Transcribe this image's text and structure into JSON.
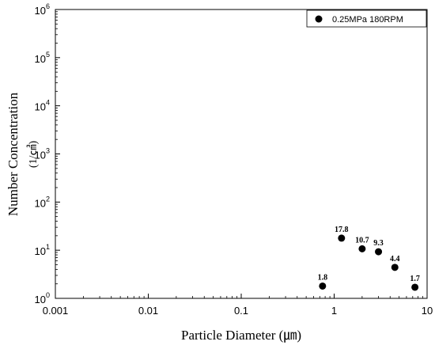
{
  "chart_data": {
    "type": "scatter",
    "xscale": "log",
    "yscale": "log",
    "xlim": [
      0.001,
      10
    ],
    "ylim": [
      1,
      1000000
    ],
    "xlabel": "Particle Diameter (㎛)",
    "ylabel": "Number Concentration",
    "ylabel_unit": "(1/㎤)",
    "x_ticks": [
      {
        "value": 0.001,
        "label": "0.001"
      },
      {
        "value": 0.01,
        "label": "0.01"
      },
      {
        "value": 0.1,
        "label": "0.1"
      },
      {
        "value": 1,
        "label": "1"
      },
      {
        "value": 10,
        "label": "10"
      }
    ],
    "y_ticks": [
      {
        "value": 1,
        "base": "10",
        "exp": "0"
      },
      {
        "value": 10,
        "base": "10",
        "exp": "1"
      },
      {
        "value": 100,
        "base": "10",
        "exp": "2"
      },
      {
        "value": 1000,
        "base": "10",
        "exp": "3"
      },
      {
        "value": 10000,
        "base": "10",
        "exp": "4"
      },
      {
        "value": 100000,
        "base": "10",
        "exp": "5"
      },
      {
        "value": 1000000,
        "base": "10",
        "exp": "6"
      }
    ],
    "legend_position": "top-right",
    "series": [
      {
        "name": "0.25MPa 180RPM",
        "color": "#000000",
        "marker": "circle",
        "points": [
          {
            "x": 0.75,
            "y": 1.8,
            "label": "1.8"
          },
          {
            "x": 1.2,
            "y": 17.8,
            "label": "17.8"
          },
          {
            "x": 2.0,
            "y": 10.7,
            "label": "10.7"
          },
          {
            "x": 3.0,
            "y": 9.3,
            "label": "9.3"
          },
          {
            "x": 4.5,
            "y": 4.4,
            "label": "4.4"
          },
          {
            "x": 7.4,
            "y": 1.7,
            "label": "1.7"
          }
        ]
      }
    ],
    "grid": false
  }
}
